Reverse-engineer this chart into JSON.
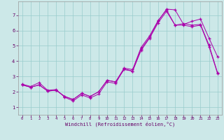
{
  "xlabel": "Windchill (Refroidissement éolien,°C)",
  "background_color": "#cce8e8",
  "grid_color": "#99cccc",
  "line_color": "#aa00aa",
  "x_ticks": [
    0,
    1,
    2,
    3,
    4,
    5,
    6,
    7,
    8,
    9,
    10,
    11,
    12,
    13,
    14,
    15,
    16,
    17,
    18,
    19,
    20,
    21,
    22,
    23
  ],
  "y_ticks": [
    1,
    2,
    3,
    4,
    5,
    6,
    7
  ],
  "xlim": [
    -0.5,
    23.5
  ],
  "ylim": [
    0.5,
    7.9
  ],
  "line1_x": [
    0,
    1,
    2,
    3,
    4,
    5,
    6,
    7,
    8,
    9,
    10,
    11,
    12,
    13,
    14,
    15,
    16,
    17,
    18,
    19,
    20,
    21,
    22,
    23
  ],
  "line1_y": [
    2.5,
    2.35,
    2.6,
    2.1,
    2.15,
    1.65,
    1.4,
    1.8,
    1.6,
    1.85,
    2.65,
    2.55,
    3.5,
    3.35,
    4.8,
    5.55,
    6.6,
    7.4,
    7.35,
    6.4,
    6.6,
    6.75,
    5.5,
    4.3
  ],
  "line2_x": [
    0,
    1,
    2,
    3,
    4,
    5,
    6,
    7,
    8,
    9,
    10,
    11,
    12,
    13,
    14,
    15,
    16,
    17,
    18,
    19,
    20,
    21,
    22,
    23
  ],
  "line2_y": [
    2.45,
    2.3,
    2.45,
    2.05,
    2.1,
    1.7,
    1.5,
    1.9,
    1.7,
    2.0,
    2.75,
    2.65,
    3.55,
    3.45,
    4.9,
    5.65,
    6.65,
    7.35,
    6.35,
    6.45,
    6.35,
    6.4,
    5.05,
    3.25
  ],
  "line3_x": [
    0,
    1,
    2,
    3,
    4,
    5,
    6,
    7,
    8,
    9,
    10,
    11,
    12,
    13,
    14,
    15,
    16,
    17,
    18,
    19,
    20,
    21,
    22,
    23
  ],
  "line3_y": [
    2.45,
    2.3,
    2.45,
    2.05,
    2.1,
    1.7,
    1.5,
    1.9,
    1.7,
    2.0,
    2.75,
    2.65,
    3.45,
    3.35,
    4.7,
    5.5,
    6.5,
    7.25,
    6.35,
    6.35,
    6.25,
    6.35,
    4.95,
    3.2
  ]
}
